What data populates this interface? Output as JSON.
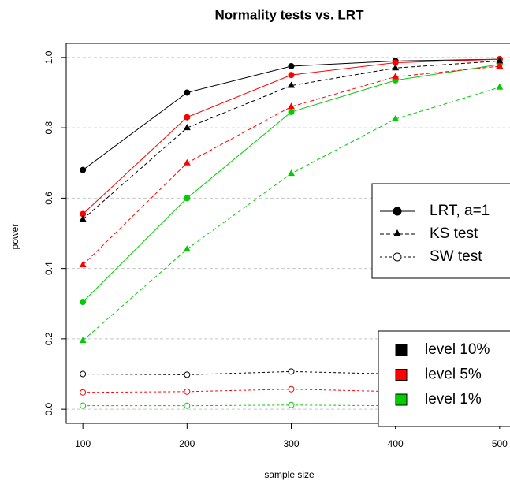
{
  "chart_data": {
    "type": "line",
    "title": "Normality tests vs. LRT",
    "x_label": "sample size",
    "y_label": "power",
    "x": [
      100,
      200,
      300,
      400,
      500
    ],
    "xlim": [
      84,
      516
    ],
    "xticks": [
      100,
      200,
      300,
      400,
      500
    ],
    "ylim": [
      -0.04,
      1.04
    ],
    "yticks": [
      {
        "value": 0,
        "label": "0.0"
      },
      0.2,
      0.4,
      0.6,
      0.8,
      {
        "value": 1,
        "label": "1.0"
      }
    ],
    "grid": true,
    "levels": [
      {
        "name": "level 10%",
        "color": "#000000"
      },
      {
        "name": "level 5%",
        "color": "#ff0000"
      },
      {
        "name": "level 1%",
        "color": "#00cd00"
      }
    ],
    "tests": [
      {
        "name": "LRT, a=1",
        "line": "solid",
        "marker": "filled-circle",
        "series": [
          {
            "values": [
              0.68,
              0.9,
              0.975,
              0.99,
              0.995
            ]
          },
          {
            "values": [
              0.555,
              0.83,
              0.95,
              0.985,
              0.995
            ]
          },
          {
            "values": [
              0.305,
              0.6,
              0.845,
              0.935,
              0.98
            ]
          }
        ]
      },
      {
        "name": "KS test",
        "line": "dashed",
        "marker": "filled-triangle",
        "series": [
          {
            "values": [
              0.54,
              0.8,
              0.92,
              0.97,
              0.99
            ]
          },
          {
            "values": [
              0.41,
              0.7,
              0.86,
              0.945,
              0.975
            ]
          },
          {
            "values": [
              0.195,
              0.455,
              0.67,
              0.825,
              0.915
            ]
          }
        ]
      },
      {
        "name": "SW test",
        "line": "dotted",
        "marker": "open-circle",
        "series": [
          {
            "values": [
              0.1,
              0.098,
              0.107,
              0.1,
              0.1
            ]
          },
          {
            "values": [
              0.048,
              0.05,
              0.057,
              0.05,
              0.05
            ]
          },
          {
            "values": [
              0.01,
              0.01,
              0.012,
              0.01,
              0.01
            ]
          }
        ]
      }
    ]
  }
}
